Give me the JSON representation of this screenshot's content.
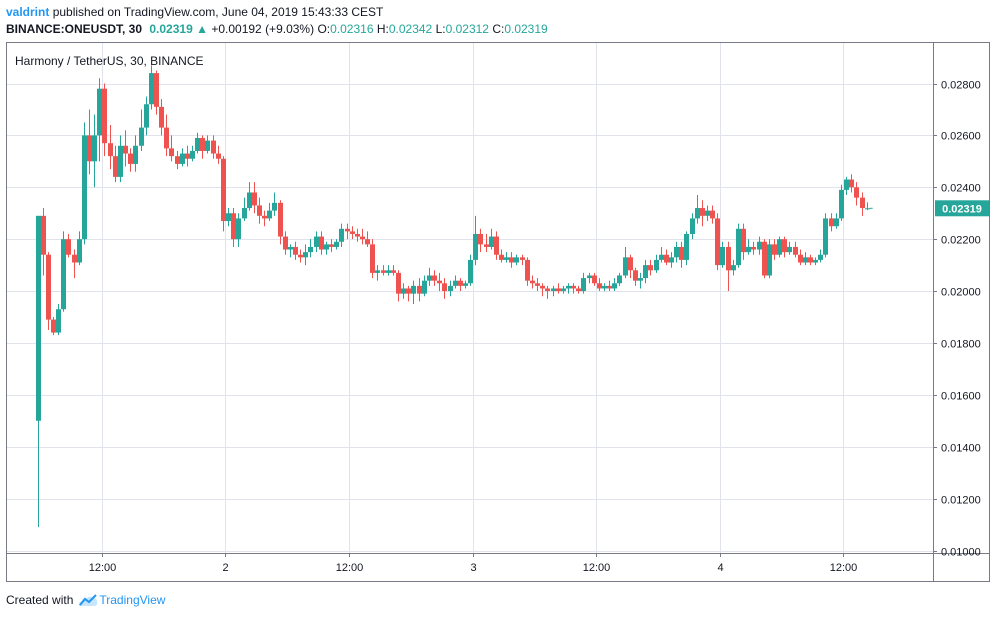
{
  "header": {
    "user": "valdrint",
    "published_text": "published on TradingView.com, June 04, 2019 15:43:33 CEST",
    "symbol": "BINANCE:ONEUSDT, 30",
    "last": "0.02319",
    "change": "+0.00192 (+9.03%)",
    "o_label": "O:",
    "o_value": "0.02316",
    "h_label": "H:",
    "h_value": "0.02342",
    "l_label": "L:",
    "l_value": "0.02312",
    "c_label": "C:",
    "c_value": "0.02319"
  },
  "footer": {
    "created_with": "Created with",
    "brand": "TradingView"
  },
  "colors": {
    "up": "#26a69a",
    "down": "#ef5350",
    "grid": "#e0e3eb",
    "axis": "#787b86",
    "price_tag": "#26a69a"
  },
  "chart_data": {
    "type": "candlestick",
    "title": "Harmony / TetherUS, 30, BINANCE",
    "ylim": [
      0.01,
      0.029
    ],
    "y_ticks": [
      "0.02800",
      "0.02600",
      "0.02400",
      "0.02200",
      "0.02000",
      "0.01800",
      "0.01600",
      "0.01400",
      "0.01200",
      "0.01000"
    ],
    "x_ticks": [
      {
        "label": "12:00",
        "index": 12.5
      },
      {
        "label": "2",
        "index": 36.5
      },
      {
        "label": "12:00",
        "index": 60.5
      },
      {
        "label": "3",
        "index": 84.5
      },
      {
        "label": "12:00",
        "index": 108.5
      },
      {
        "label": "4",
        "index": 132.5
      },
      {
        "label": "12:00",
        "index": 156.5
      }
    ],
    "last_price_label": "0.02319",
    "candles": [
      [
        0.015,
        0.0229,
        0.0109,
        0.0228
      ],
      [
        0.0229,
        0.0214,
        0.0232,
        0.0206
      ],
      [
        0.0214,
        0.0189,
        0.0215,
        0.0185
      ],
      [
        0.0189,
        0.0184,
        0.019,
        0.0183
      ],
      [
        0.0184,
        0.0193,
        0.0195,
        0.0183
      ],
      [
        0.0193,
        0.022,
        0.0223,
        0.0192
      ],
      [
        0.022,
        0.0214,
        0.0222,
        0.0213
      ],
      [
        0.0214,
        0.0211,
        0.0216,
        0.0205
      ],
      [
        0.0211,
        0.022,
        0.0223,
        0.021
      ],
      [
        0.022,
        0.026,
        0.0265,
        0.0218
      ],
      [
        0.026,
        0.025,
        0.027,
        0.0245
      ],
      [
        0.025,
        0.026,
        0.0268,
        0.024
      ],
      [
        0.026,
        0.0278,
        0.0282,
        0.025
      ],
      [
        0.0278,
        0.0257,
        0.028,
        0.0252
      ],
      [
        0.0257,
        0.0252,
        0.0264,
        0.0247
      ],
      [
        0.0252,
        0.0244,
        0.0256,
        0.0242
      ],
      [
        0.0244,
        0.0256,
        0.026,
        0.0242
      ],
      [
        0.0256,
        0.0253,
        0.0262,
        0.0248
      ],
      [
        0.0253,
        0.0249,
        0.0255,
        0.0246
      ],
      [
        0.0249,
        0.0256,
        0.026,
        0.0246
      ],
      [
        0.0256,
        0.0263,
        0.027,
        0.0254
      ],
      [
        0.0263,
        0.0272,
        0.0275,
        0.026
      ],
      [
        0.0272,
        0.0284,
        0.0287,
        0.027
      ],
      [
        0.0284,
        0.0271,
        0.0285,
        0.0268
      ],
      [
        0.0271,
        0.0263,
        0.0274,
        0.026
      ],
      [
        0.0263,
        0.0255,
        0.0268,
        0.0252
      ],
      [
        0.0255,
        0.0252,
        0.026,
        0.025
      ],
      [
        0.0252,
        0.0249,
        0.0254,
        0.0247
      ],
      [
        0.0249,
        0.0253,
        0.0255,
        0.0248
      ],
      [
        0.0253,
        0.0251,
        0.0256,
        0.0248
      ],
      [
        0.0251,
        0.0254,
        0.0256,
        0.025
      ],
      [
        0.0254,
        0.0259,
        0.0261,
        0.0253
      ],
      [
        0.0259,
        0.0254,
        0.026,
        0.0251
      ],
      [
        0.0254,
        0.0258,
        0.026,
        0.0253
      ],
      [
        0.0258,
        0.0253,
        0.026,
        0.0251
      ],
      [
        0.0253,
        0.0251,
        0.0256,
        0.0249
      ],
      [
        0.0251,
        0.0227,
        0.0252,
        0.0223
      ],
      [
        0.0227,
        0.023,
        0.0232,
        0.0225
      ],
      [
        0.023,
        0.022,
        0.0232,
        0.0217
      ],
      [
        0.022,
        0.0228,
        0.023,
        0.0217
      ],
      [
        0.0228,
        0.0232,
        0.0236,
        0.0227
      ],
      [
        0.0232,
        0.0238,
        0.0242,
        0.0231
      ],
      [
        0.0238,
        0.0233,
        0.0242,
        0.023
      ],
      [
        0.0233,
        0.0229,
        0.0236,
        0.0226
      ],
      [
        0.0229,
        0.0228,
        0.0231,
        0.0225
      ],
      [
        0.0228,
        0.0231,
        0.0234,
        0.0227
      ],
      [
        0.0231,
        0.0234,
        0.0238,
        0.0229
      ],
      [
        0.0234,
        0.0221,
        0.0235,
        0.0218
      ],
      [
        0.0221,
        0.0216,
        0.0223,
        0.0214
      ],
      [
        0.0216,
        0.0217,
        0.0218,
        0.0213
      ],
      [
        0.0217,
        0.0214,
        0.0219,
        0.0212
      ],
      [
        0.0214,
        0.0213,
        0.0216,
        0.0211
      ],
      [
        0.0213,
        0.0215,
        0.0218,
        0.021
      ],
      [
        0.0215,
        0.0217,
        0.022,
        0.0213
      ],
      [
        0.0217,
        0.0221,
        0.0223,
        0.0215
      ],
      [
        0.0221,
        0.0216,
        0.0223,
        0.0214
      ],
      [
        0.0216,
        0.0218,
        0.0219,
        0.0214
      ],
      [
        0.0218,
        0.0217,
        0.022,
        0.0215
      ],
      [
        0.0217,
        0.0219,
        0.022,
        0.0216
      ],
      [
        0.0219,
        0.0224,
        0.0226,
        0.0217
      ],
      [
        0.0224,
        0.0223,
        0.0226,
        0.022
      ],
      [
        0.0223,
        0.0222,
        0.0225,
        0.022
      ],
      [
        0.0222,
        0.0221,
        0.0224,
        0.0219
      ],
      [
        0.0221,
        0.022,
        0.0224,
        0.0218
      ],
      [
        0.022,
        0.0218,
        0.0223,
        0.0217
      ],
      [
        0.0218,
        0.0207,
        0.022,
        0.0205
      ],
      [
        0.0207,
        0.0208,
        0.021,
        0.0204
      ],
      [
        0.0208,
        0.0207,
        0.021,
        0.0206
      ],
      [
        0.0207,
        0.0208,
        0.021,
        0.0206
      ],
      [
        0.0208,
        0.0207,
        0.021,
        0.0206
      ],
      [
        0.0207,
        0.0199,
        0.0208,
        0.0196
      ],
      [
        0.0199,
        0.0201,
        0.0203,
        0.0197
      ],
      [
        0.0201,
        0.0199,
        0.0202,
        0.0196
      ],
      [
        0.0199,
        0.0202,
        0.0204,
        0.0195
      ],
      [
        0.0202,
        0.0199,
        0.0205,
        0.0196
      ],
      [
        0.0199,
        0.0204,
        0.0206,
        0.0198
      ],
      [
        0.0204,
        0.0206,
        0.0209,
        0.0202
      ],
      [
        0.0206,
        0.0204,
        0.0208,
        0.0202
      ],
      [
        0.0204,
        0.0203,
        0.0207,
        0.02
      ],
      [
        0.0203,
        0.02,
        0.0205,
        0.0197
      ],
      [
        0.02,
        0.0202,
        0.0204,
        0.0198
      ],
      [
        0.0202,
        0.0204,
        0.0206,
        0.0201
      ],
      [
        0.0204,
        0.0202,
        0.0205,
        0.02
      ],
      [
        0.0202,
        0.0203,
        0.0204,
        0.0201
      ],
      [
        0.0203,
        0.0212,
        0.0214,
        0.0202
      ],
      [
        0.0212,
        0.0222,
        0.0229,
        0.021
      ],
      [
        0.0222,
        0.0218,
        0.0224,
        0.0215
      ],
      [
        0.0218,
        0.0217,
        0.0222,
        0.0215
      ],
      [
        0.0217,
        0.0221,
        0.0224,
        0.0216
      ],
      [
        0.0221,
        0.0214,
        0.0223,
        0.0212
      ],
      [
        0.0214,
        0.0212,
        0.0216,
        0.0211
      ],
      [
        0.0212,
        0.0213,
        0.0215,
        0.0211
      ],
      [
        0.0213,
        0.0211,
        0.0215,
        0.0209
      ],
      [
        0.0211,
        0.0213,
        0.0214,
        0.021
      ],
      [
        0.0213,
        0.0212,
        0.0214,
        0.021
      ],
      [
        0.0212,
        0.0204,
        0.0213,
        0.0202
      ],
      [
        0.0204,
        0.0203,
        0.0206,
        0.0201
      ],
      [
        0.0203,
        0.0202,
        0.0205,
        0.02
      ],
      [
        0.0202,
        0.0201,
        0.0203,
        0.0198
      ],
      [
        0.0201,
        0.02,
        0.0202,
        0.0197
      ],
      [
        0.02,
        0.0201,
        0.0202,
        0.0198
      ],
      [
        0.0201,
        0.02,
        0.0203,
        0.0199
      ],
      [
        0.02,
        0.0201,
        0.0202,
        0.0199
      ],
      [
        0.0201,
        0.0202,
        0.0203,
        0.0199
      ],
      [
        0.0202,
        0.0201,
        0.0203,
        0.0199
      ],
      [
        0.0201,
        0.02,
        0.0202,
        0.0199
      ],
      [
        0.02,
        0.0205,
        0.0207,
        0.0199
      ],
      [
        0.0205,
        0.0206,
        0.0207,
        0.0203
      ],
      [
        0.0206,
        0.0203,
        0.0207,
        0.0202
      ],
      [
        0.0203,
        0.0201,
        0.0205,
        0.02
      ],
      [
        0.0201,
        0.0202,
        0.0203,
        0.02
      ],
      [
        0.0202,
        0.0201,
        0.0204,
        0.02
      ],
      [
        0.0201,
        0.0203,
        0.0205,
        0.02
      ],
      [
        0.0203,
        0.0206,
        0.0207,
        0.0202
      ],
      [
        0.0206,
        0.0213,
        0.0217,
        0.0205
      ],
      [
        0.0213,
        0.0208,
        0.0214,
        0.0205
      ],
      [
        0.0208,
        0.0204,
        0.0209,
        0.0202
      ],
      [
        0.0204,
        0.0205,
        0.0207,
        0.0201
      ],
      [
        0.0205,
        0.021,
        0.0212,
        0.0203
      ],
      [
        0.021,
        0.0208,
        0.0212,
        0.0206
      ],
      [
        0.0208,
        0.0212,
        0.0214,
        0.0207
      ],
      [
        0.0212,
        0.0214,
        0.0217,
        0.0211
      ],
      [
        0.0214,
        0.0211,
        0.0216,
        0.021
      ],
      [
        0.0211,
        0.0213,
        0.0215,
        0.0209
      ],
      [
        0.0213,
        0.0217,
        0.0219,
        0.0211
      ],
      [
        0.0217,
        0.0212,
        0.0219,
        0.0209
      ],
      [
        0.0212,
        0.0222,
        0.0223,
        0.021
      ],
      [
        0.0222,
        0.0228,
        0.023,
        0.022
      ],
      [
        0.0228,
        0.0232,
        0.0237,
        0.0226
      ],
      [
        0.0232,
        0.0229,
        0.0235,
        0.0225
      ],
      [
        0.0229,
        0.0231,
        0.0233,
        0.0227
      ],
      [
        0.0231,
        0.0228,
        0.0233,
        0.0226
      ],
      [
        0.0228,
        0.021,
        0.023,
        0.0208
      ],
      [
        0.021,
        0.0217,
        0.0219,
        0.0209
      ],
      [
        0.0217,
        0.0208,
        0.0219,
        0.02
      ],
      [
        0.0208,
        0.021,
        0.0212,
        0.0206
      ],
      [
        0.021,
        0.0224,
        0.0226,
        0.0209
      ],
      [
        0.0224,
        0.0215,
        0.0226,
        0.0212
      ],
      [
        0.0215,
        0.0217,
        0.022,
        0.0214
      ],
      [
        0.0217,
        0.0216,
        0.0219,
        0.0214
      ],
      [
        0.0216,
        0.0219,
        0.0221,
        0.0214
      ],
      [
        0.0219,
        0.0206,
        0.022,
        0.0205
      ],
      [
        0.0206,
        0.0218,
        0.022,
        0.0205
      ],
      [
        0.0218,
        0.0214,
        0.022,
        0.0212
      ],
      [
        0.0214,
        0.022,
        0.0221,
        0.0213
      ],
      [
        0.022,
        0.0215,
        0.0221,
        0.0213
      ],
      [
        0.0215,
        0.0217,
        0.0219,
        0.0214
      ],
      [
        0.0217,
        0.0214,
        0.0219,
        0.0213
      ],
      [
        0.0214,
        0.0211,
        0.0216,
        0.021
      ],
      [
        0.0211,
        0.0213,
        0.0215,
        0.021
      ],
      [
        0.0213,
        0.0211,
        0.0214,
        0.021
      ],
      [
        0.0211,
        0.0212,
        0.0213,
        0.021
      ],
      [
        0.0212,
        0.0214,
        0.0216,
        0.0211
      ],
      [
        0.0214,
        0.0228,
        0.023,
        0.0213
      ],
      [
        0.0228,
        0.0225,
        0.023,
        0.0223
      ],
      [
        0.0225,
        0.0228,
        0.023,
        0.0224
      ],
      [
        0.0228,
        0.0239,
        0.0241,
        0.0227
      ],
      [
        0.0239,
        0.0243,
        0.0244,
        0.0237
      ],
      [
        0.0243,
        0.024,
        0.0245,
        0.0238
      ],
      [
        0.024,
        0.0236,
        0.0242,
        0.0233
      ],
      [
        0.0236,
        0.0232,
        0.0238,
        0.0229
      ],
      [
        0.02316,
        0.02319,
        0.02342,
        0.02312
      ]
    ]
  }
}
